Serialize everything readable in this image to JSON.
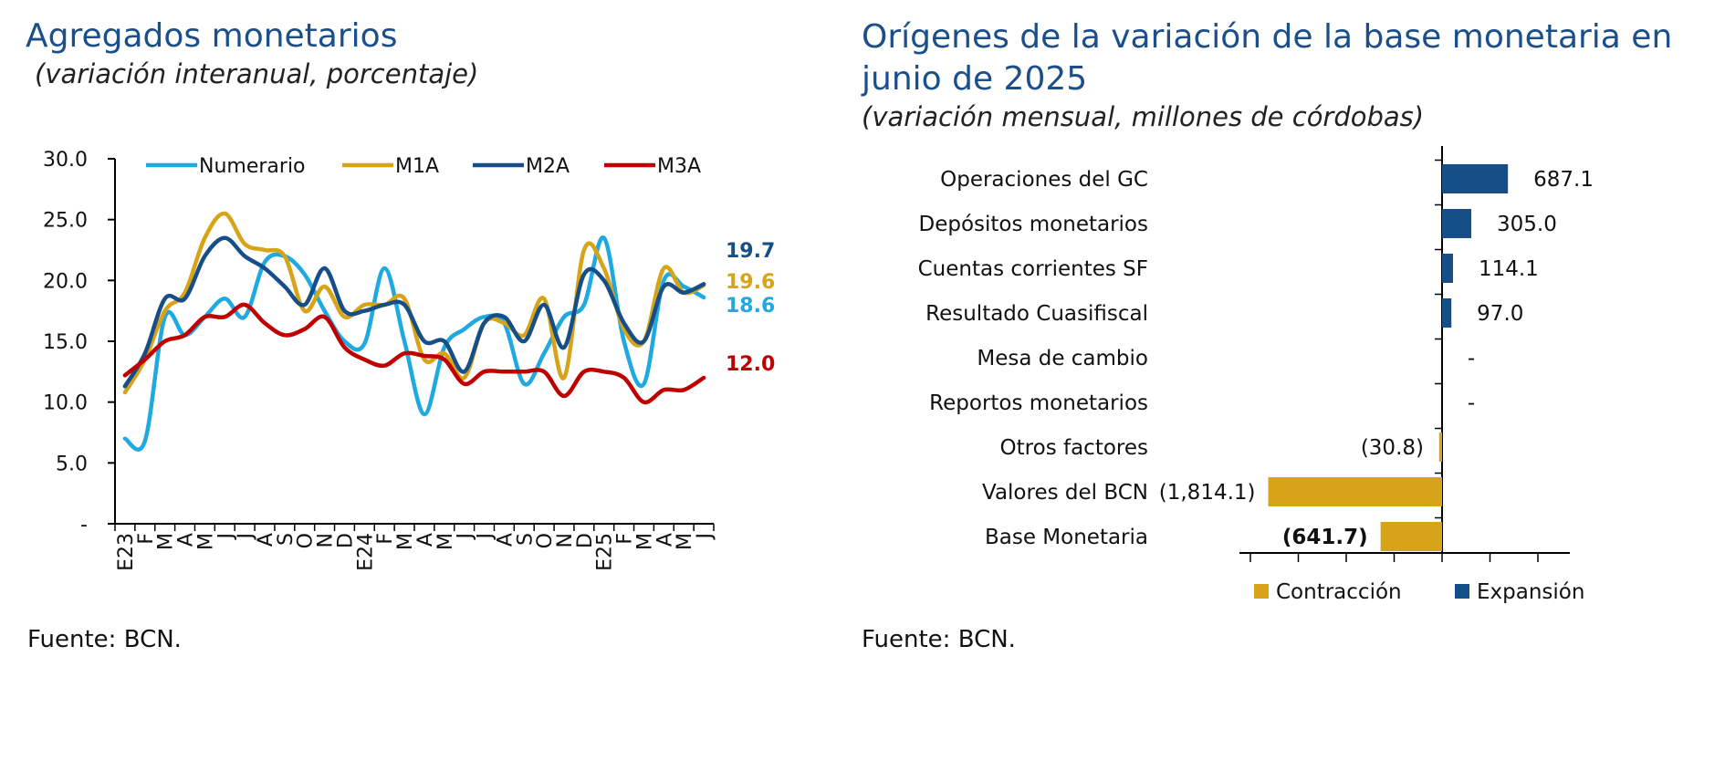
{
  "left": {
    "title": "Agregados monetarios",
    "subtitle": "(variación interanual, porcentaje)",
    "source": "Fuente: BCN."
  },
  "right": {
    "title_line1": "Orígenes de la variación de la base monetaria en",
    "title_line2": "junio de 2025",
    "subtitle": "(variación mensual, millones de córdobas)",
    "source": "Fuente: BCN."
  },
  "chart_data": [
    {
      "type": "line",
      "title": "Agregados monetarios",
      "subtitle": "(variación interanual, porcentaje)",
      "x": [
        "E23",
        "F",
        "M",
        "A",
        "M",
        "J",
        "J",
        "A",
        "S",
        "O",
        "N",
        "D",
        "E24",
        "F",
        "M",
        "A",
        "M",
        "J",
        "J",
        "A",
        "S",
        "O",
        "N",
        "D",
        "E25",
        "F",
        "M",
        "A",
        "M",
        "J"
      ],
      "ylim": [
        0,
        30
      ],
      "yticks": [
        0,
        5,
        10,
        15,
        20,
        25,
        30
      ],
      "ytick_labels": [
        "-",
        "5.0",
        "10.0",
        "15.0",
        "20.0",
        "25.0",
        "30.0"
      ],
      "legend_position": "top",
      "grid": false,
      "series": [
        {
          "name": "Numerario",
          "color": "#1fa9e1",
          "values": [
            7.0,
            6.8,
            17.0,
            15.5,
            17.0,
            18.5,
            17.0,
            21.5,
            22.0,
            20.5,
            17.5,
            15.0,
            14.8,
            21.0,
            15.0,
            9.0,
            14.5,
            16.0,
            17.0,
            16.5,
            11.5,
            14.0,
            17.0,
            18.0,
            23.5,
            15.0,
            11.5,
            20.0,
            19.5,
            18.6
          ],
          "end_label": "18.6"
        },
        {
          "name": "M1A",
          "color": "#d6a319",
          "values": [
            10.8,
            13.5,
            17.5,
            19.0,
            23.5,
            25.5,
            23.0,
            22.5,
            22.0,
            17.5,
            19.5,
            17.0,
            18.0,
            18.0,
            18.5,
            13.5,
            14.0,
            12.0,
            16.5,
            16.5,
            15.5,
            18.5,
            12.0,
            22.5,
            21.0,
            16.0,
            15.0,
            21.0,
            19.0,
            19.6
          ],
          "end_label": "19.6"
        },
        {
          "name": "M2A",
          "color": "#164e87",
          "values": [
            11.3,
            14.0,
            18.5,
            18.5,
            22.0,
            23.5,
            22.0,
            21.0,
            19.5,
            18.0,
            21.0,
            17.5,
            17.5,
            18.0,
            18.0,
            15.0,
            15.0,
            12.5,
            16.5,
            17.0,
            15.0,
            18.0,
            14.5,
            20.5,
            20.0,
            16.5,
            15.0,
            19.5,
            19.0,
            19.7
          ],
          "end_label": "19.7"
        },
        {
          "name": "M3A",
          "color": "#c00000",
          "values": [
            12.2,
            13.5,
            15.0,
            15.5,
            17.0,
            17.0,
            18.0,
            16.5,
            15.5,
            16.0,
            17.0,
            14.5,
            13.5,
            13.0,
            14.0,
            13.8,
            13.5,
            11.5,
            12.5,
            12.5,
            12.5,
            12.5,
            10.5,
            12.5,
            12.5,
            12.0,
            10.0,
            11.0,
            11.0,
            12.0
          ],
          "end_label": "12.0"
        }
      ]
    },
    {
      "type": "bar",
      "orientation": "horizontal",
      "title": "Orígenes de la variación de la base monetaria en junio de 2025",
      "subtitle": "(variación mensual, millones de córdobas)",
      "categories": [
        "Operaciones del GC",
        "Depósitos monetarios",
        "Cuentas corrientes SF",
        "Resultado Cuasifiscal",
        "Mesa de cambio",
        "Reportos monetarios",
        "Otros factores",
        "Valores del BCN",
        "Base Monetaria"
      ],
      "values": [
        687.1,
        305.0,
        114.1,
        97.0,
        0,
        0,
        -30.8,
        -1814.1,
        -641.7
      ],
      "value_labels": [
        "687.1",
        "305.0",
        "114.1",
        "97.0",
        "-",
        "-",
        "(30.8)",
        "(1,814.1)",
        "(641.7)"
      ],
      "bold_labels": [
        false,
        false,
        false,
        false,
        false,
        false,
        false,
        false,
        true
      ],
      "xlim": [
        -2500,
        1500
      ],
      "legend": [
        {
          "name": "Contracción",
          "color": "#d6a319"
        },
        {
          "name": "Expansión",
          "color": "#164e87"
        }
      ],
      "legend_position": "bottom"
    }
  ]
}
